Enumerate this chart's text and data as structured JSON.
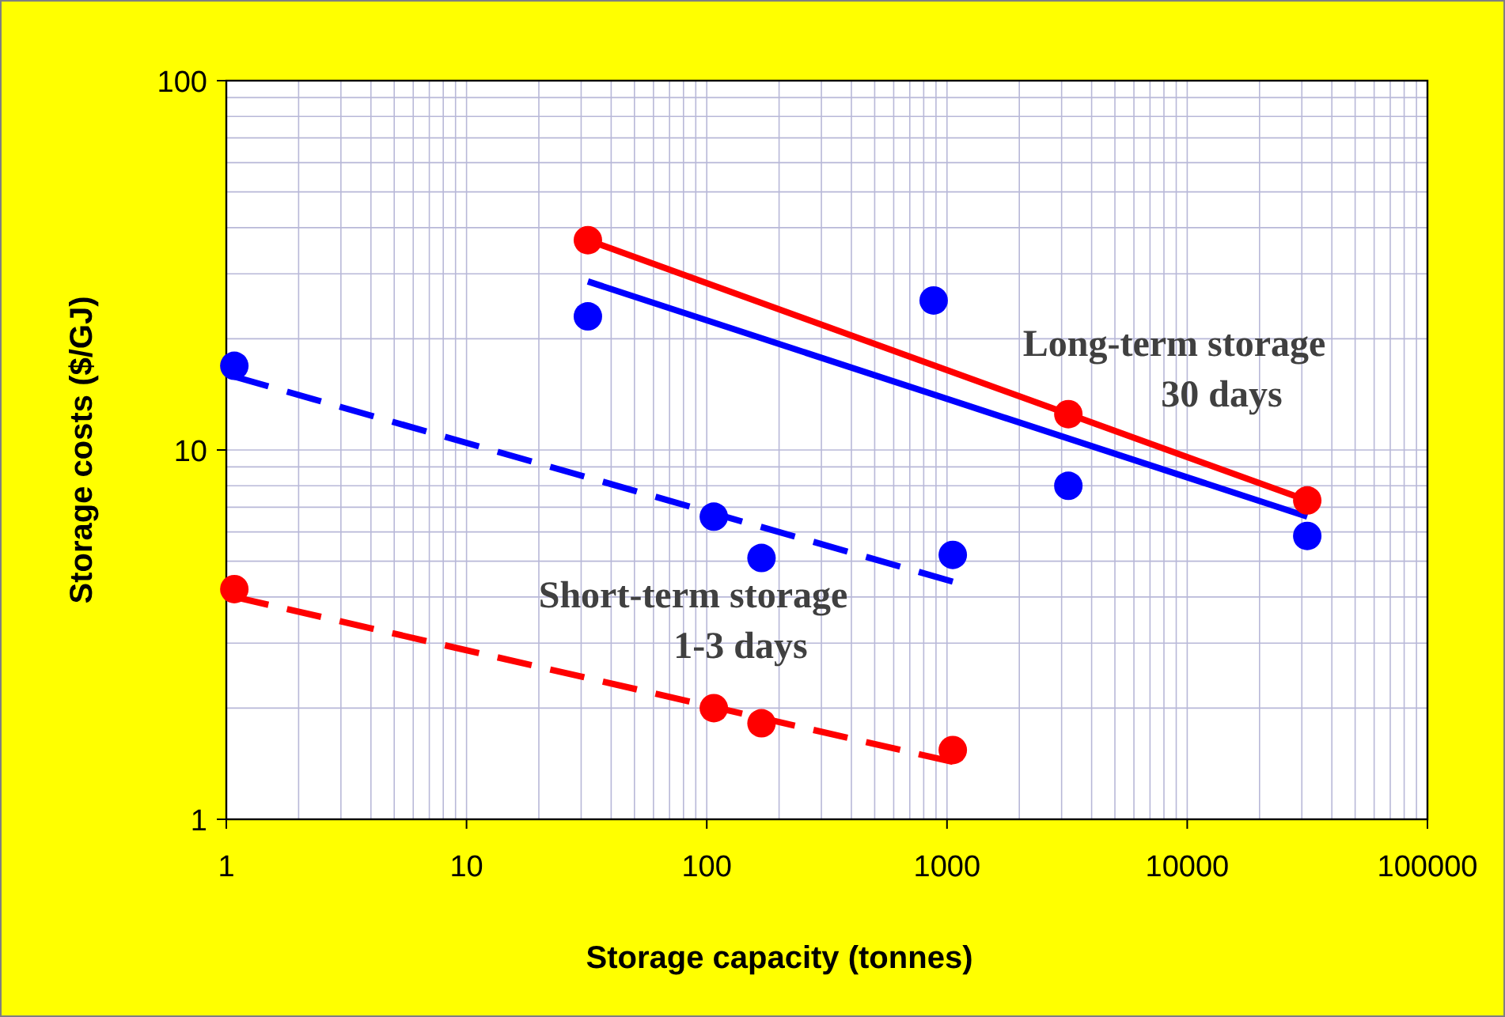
{
  "chart_data": {
    "type": "scatter",
    "xlabel": "Storage capacity (tonnes)",
    "ylabel": "Storage costs ($/GJ)",
    "log": "xy",
    "grid": true,
    "xlim": [
      1,
      100000
    ],
    "xticks": [
      1,
      10,
      100,
      1000,
      10000,
      100000
    ],
    "ylim": [
      1,
      100
    ],
    "yticks": [
      1,
      10,
      100
    ],
    "series": [
      {
        "type": "line",
        "color": "#ff0000",
        "line_style": "solid",
        "x": [
          32,
          31600
        ],
        "values": [
          37,
          7.3
        ]
      },
      {
        "type": "line",
        "color": "#0000ff",
        "line_style": "solid",
        "x": [
          32,
          31600
        ],
        "values": [
          28.6,
          6.6
        ]
      },
      {
        "type": "line",
        "color": "#0000ff",
        "line_style": "dashed",
        "x": [
          1.08,
          1057
        ],
        "values": [
          15.8,
          4.4
        ]
      },
      {
        "type": "line",
        "color": "#ff0000",
        "line_style": "dashed",
        "x": [
          1.08,
          1057
        ],
        "values": [
          4.0,
          1.43
        ]
      },
      {
        "marker": "circle",
        "color": "#ff0000",
        "x": [
          32,
          3200,
          31600
        ],
        "values": [
          37,
          12.5,
          7.3
        ]
      },
      {
        "marker": "circle",
        "color": "#0000ff",
        "x": [
          32,
          880,
          3200,
          31600
        ],
        "values": [
          23,
          25.4,
          8.0,
          5.85
        ]
      },
      {
        "marker": "circle",
        "color": "#0000ff",
        "x": [
          1.08,
          107,
          169,
          1057
        ],
        "values": [
          16.9,
          6.6,
          5.1,
          5.2
        ]
      },
      {
        "marker": "circle",
        "color": "#ff0000",
        "x": [
          1.08,
          107,
          169,
          1057
        ],
        "values": [
          4.2,
          2.0,
          1.82,
          1.54
        ]
      }
    ],
    "annotations": [
      "Long-term storage\n30 days",
      "Short-term storage\n1-3 days"
    ]
  }
}
